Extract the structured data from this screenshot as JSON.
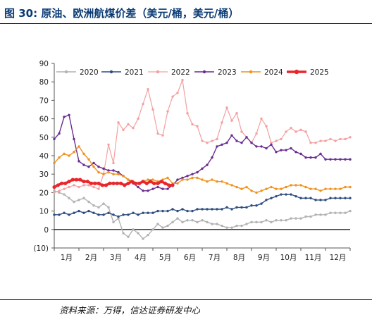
{
  "header": {
    "title": "图 30:  原油、欧洲航煤价差（美元/桶，美元/桶）"
  },
  "footer": {
    "source": "资料来源：万得，信达证券研发中心"
  },
  "chart_data": {
    "type": "line",
    "title": "",
    "xlabel": "",
    "ylabel": "",
    "ylim": [
      -10,
      90
    ],
    "yticks": [
      -10,
      0,
      10,
      20,
      30,
      40,
      50,
      60,
      70,
      80,
      90
    ],
    "ytick_labels": [
      "(10)",
      "0",
      "10",
      "20",
      "30",
      "40",
      "50",
      "60",
      "70",
      "80",
      "90"
    ],
    "xlim": [
      1,
      13
    ],
    "x_categories": [
      "1月",
      "2月",
      "3月",
      "4月",
      "5月",
      "6月",
      "7月",
      "8月",
      "9月",
      "10月",
      "11月",
      "12月"
    ],
    "grid": false,
    "legend_position": "top",
    "series": [
      {
        "name": "2020",
        "color": "#b3b3b3",
        "marker": "circle",
        "line_width": 1.4,
        "x": [
          1.0,
          1.2,
          1.4,
          1.6,
          1.8,
          2.0,
          2.2,
          2.4,
          2.6,
          2.8,
          3.0,
          3.2,
          3.4,
          3.6,
          3.8,
          4.0,
          4.2,
          4.4,
          4.6,
          4.8,
          5.0,
          5.2,
          5.4,
          5.6,
          5.8,
          6.0,
          6.2,
          6.4,
          6.6,
          6.8,
          7.0,
          7.2,
          7.4,
          7.6,
          7.8,
          8.0,
          8.2,
          8.4,
          8.6,
          8.8,
          9.0,
          9.2,
          9.4,
          9.6,
          9.8,
          10.0,
          10.2,
          10.4,
          10.6,
          10.8,
          11.0,
          11.2,
          11.4,
          11.6,
          11.8,
          12.0,
          12.2,
          12.4,
          12.6,
          12.8,
          13.0
        ],
        "values": [
          21,
          20,
          19,
          17,
          15,
          16,
          17,
          15,
          13,
          12,
          14,
          12,
          4,
          6,
          -2,
          -4,
          0,
          -2,
          -5,
          -3,
          0,
          3,
          1,
          2,
          4,
          6,
          4,
          5,
          5,
          4,
          5,
          4,
          3,
          3,
          2,
          1,
          1,
          2,
          2,
          3,
          4,
          4,
          4,
          5,
          4,
          5,
          5,
          5,
          6,
          6,
          6,
          7,
          7,
          8,
          8,
          8,
          9,
          9,
          9,
          9,
          10
        ]
      },
      {
        "name": "2021",
        "color": "#2e4d80",
        "marker": "circle",
        "line_width": 1.4,
        "x": [
          1.0,
          1.2,
          1.4,
          1.6,
          1.8,
          2.0,
          2.2,
          2.4,
          2.6,
          2.8,
          3.0,
          3.2,
          3.4,
          3.6,
          3.8,
          4.0,
          4.2,
          4.4,
          4.6,
          4.8,
          5.0,
          5.2,
          5.4,
          5.6,
          5.8,
          6.0,
          6.2,
          6.4,
          6.6,
          6.8,
          7.0,
          7.2,
          7.4,
          7.6,
          7.8,
          8.0,
          8.2,
          8.4,
          8.6,
          8.8,
          9.0,
          9.2,
          9.4,
          9.6,
          9.8,
          10.0,
          10.2,
          10.4,
          10.6,
          10.8,
          11.0,
          11.2,
          11.4,
          11.6,
          11.8,
          12.0,
          12.2,
          12.4,
          12.6,
          12.8,
          13.0
        ],
        "values": [
          8,
          8,
          9,
          8,
          9,
          10,
          9,
          10,
          9,
          8,
          8,
          9,
          8,
          7,
          8,
          8,
          9,
          8,
          9,
          9,
          9,
          10,
          10,
          10,
          11,
          10,
          11,
          10,
          10,
          11,
          11,
          11,
          11,
          11,
          11,
          12,
          11,
          12,
          12,
          12,
          13,
          13,
          14,
          16,
          17,
          18,
          19,
          19,
          19,
          18,
          17,
          17,
          17,
          16,
          16,
          16,
          17,
          17,
          17,
          17,
          17
        ]
      },
      {
        "name": "2022",
        "color": "#f4a0a0",
        "marker": "circle",
        "line_width": 1.2,
        "x": [
          1.0,
          1.2,
          1.4,
          1.6,
          1.8,
          2.0,
          2.2,
          2.4,
          2.6,
          2.8,
          3.0,
          3.2,
          3.4,
          3.6,
          3.8,
          4.0,
          4.2,
          4.4,
          4.6,
          4.8,
          5.0,
          5.2,
          5.4,
          5.6,
          5.8,
          6.0,
          6.2,
          6.4,
          6.6,
          6.8,
          7.0,
          7.2,
          7.4,
          7.6,
          7.8,
          8.0,
          8.2,
          8.4,
          8.6,
          8.8,
          9.0,
          9.2,
          9.4,
          9.6,
          9.8,
          10.0,
          10.2,
          10.4,
          10.6,
          10.8,
          11.0,
          11.2,
          11.4,
          11.6,
          11.8,
          12.0,
          12.2,
          12.4,
          12.6,
          12.8,
          13.0
        ],
        "values": [
          20,
          21,
          22,
          23,
          24,
          23,
          24,
          24,
          23,
          22,
          30,
          46,
          36,
          58,
          54,
          57,
          55,
          60,
          68,
          76,
          65,
          52,
          51,
          64,
          72,
          74,
          81,
          63,
          57,
          56,
          48,
          47,
          48,
          49,
          58,
          66,
          59,
          63,
          53,
          50,
          47,
          52,
          60,
          56,
          47,
          48,
          49,
          53,
          55,
          53,
          54,
          53,
          47,
          47,
          48,
          48,
          49,
          48,
          49,
          49,
          50
        ]
      },
      {
        "name": "2023",
        "color": "#6a2c91",
        "marker": "circle",
        "line_width": 1.4,
        "x": [
          1.0,
          1.2,
          1.4,
          1.6,
          1.8,
          2.0,
          2.2,
          2.4,
          2.6,
          2.8,
          3.0,
          3.2,
          3.4,
          3.6,
          3.8,
          4.0,
          4.2,
          4.4,
          4.6,
          4.8,
          5.0,
          5.2,
          5.4,
          5.6,
          5.8,
          6.0,
          6.2,
          6.4,
          6.6,
          6.8,
          7.0,
          7.2,
          7.4,
          7.6,
          7.8,
          8.0,
          8.2,
          8.4,
          8.6,
          8.8,
          9.0,
          9.2,
          9.4,
          9.6,
          9.8,
          10.0,
          10.2,
          10.4,
          10.6,
          10.8,
          11.0,
          11.2,
          11.4,
          11.6,
          11.8,
          12.0,
          12.2,
          12.4,
          12.6,
          12.8,
          13.0
        ],
        "values": [
          49,
          52,
          61,
          62,
          49,
          37,
          35,
          34,
          36,
          34,
          33,
          32,
          32,
          31,
          29,
          27,
          25,
          23,
          21,
          21,
          22,
          23,
          22,
          22,
          24,
          27,
          28,
          29,
          30,
          31,
          33,
          35,
          39,
          45,
          46,
          47,
          51,
          48,
          47,
          50,
          47,
          45,
          45,
          44,
          46,
          42,
          43,
          43,
          44,
          42,
          41,
          39,
          39,
          39,
          41,
          38,
          38,
          38,
          38,
          38,
          38
        ]
      },
      {
        "name": "2024",
        "color": "#f0921c",
        "marker": "circle",
        "line_width": 1.4,
        "x": [
          1.0,
          1.2,
          1.4,
          1.6,
          1.8,
          2.0,
          2.2,
          2.4,
          2.6,
          2.8,
          3.0,
          3.2,
          3.4,
          3.6,
          3.8,
          4.0,
          4.2,
          4.4,
          4.6,
          4.8,
          5.0,
          5.2,
          5.4,
          5.6,
          5.8,
          6.0,
          6.2,
          6.4,
          6.6,
          6.8,
          7.0,
          7.2,
          7.4,
          7.6,
          7.8,
          8.0,
          8.2,
          8.4,
          8.6,
          8.8,
          9.0,
          9.2,
          9.4,
          9.6,
          9.8,
          10.0,
          10.2,
          10.4,
          10.6,
          10.8,
          11.0,
          11.2,
          11.4,
          11.6,
          11.8,
          12.0,
          12.2,
          12.4,
          12.6,
          12.8,
          13.0
        ],
        "values": [
          36,
          39,
          41,
          40,
          42,
          45,
          41,
          38,
          34,
          31,
          30,
          31,
          30,
          30,
          29,
          27,
          26,
          25,
          26,
          27,
          27,
          26,
          27,
          28,
          25,
          25,
          27,
          27,
          28,
          28,
          27,
          26,
          27,
          26,
          26,
          25,
          24,
          23,
          22,
          23,
          21,
          20,
          21,
          22,
          23,
          22,
          22,
          23,
          24,
          24,
          24,
          23,
          22,
          22,
          21,
          22,
          22,
          22,
          22,
          23,
          23
        ]
      },
      {
        "name": "2025",
        "color": "#e8262b",
        "marker": "circle",
        "line_width": 3.5,
        "x": [
          1.0,
          1.15,
          1.3,
          1.45,
          1.6,
          1.75,
          1.9,
          2.05,
          2.2,
          2.35,
          2.5,
          2.65,
          2.8,
          2.95,
          3.1,
          3.25,
          3.4,
          3.55,
          3.7,
          3.85,
          4.0,
          4.15,
          4.3,
          4.45,
          4.6,
          4.75,
          4.9,
          5.05,
          5.2,
          5.35,
          5.5,
          5.65,
          5.8
        ],
        "values": [
          23,
          24,
          25,
          25,
          26,
          27,
          27,
          27,
          26,
          26,
          25,
          25,
          25,
          24,
          24,
          25,
          25,
          25,
          25,
          24,
          25,
          26,
          25,
          25,
          26,
          25,
          26,
          25,
          25,
          26,
          25,
          24,
          24
        ]
      }
    ]
  }
}
